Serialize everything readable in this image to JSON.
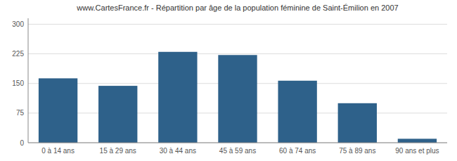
{
  "chart_data": {
    "type": "bar",
    "title": "www.CartesFrance.fr - Répartition par âge de la population féminine de Saint-Émilion en 2007",
    "categories": [
      "0 à 14 ans",
      "15 à 29 ans",
      "30 à 44 ans",
      "45 à 59 ans",
      "60 à 74 ans",
      "75 à 89 ans",
      "90 ans et plus"
    ],
    "values": [
      163,
      144,
      230,
      222,
      157,
      100,
      10
    ],
    "color": "#2e618a",
    "ylim": [
      0,
      315
    ],
    "yticks": [
      0,
      75,
      150,
      225,
      300
    ],
    "grid": true
  }
}
